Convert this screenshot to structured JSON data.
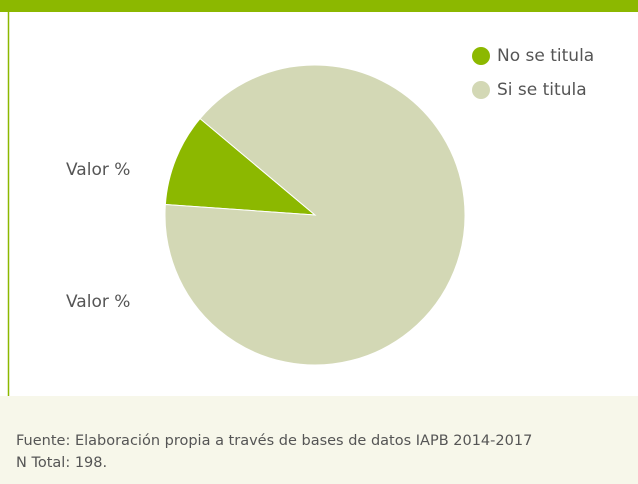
{
  "chart_data": {
    "type": "pie",
    "categories": [
      "No se titula",
      "Si se titula"
    ],
    "values": [
      10,
      90
    ],
    "colors": [
      "#8cb800",
      "#d3d8b5"
    ],
    "annotations": [
      "Valor %",
      "Valor %"
    ],
    "source": "Fuente: Elaboración propia a través de bases de datos IAPB 2014-2017",
    "note": "N Total: 198."
  }
}
